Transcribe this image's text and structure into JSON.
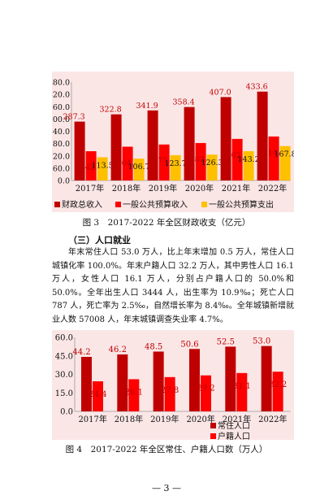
{
  "charts": [
    {
      "chart_data": {
        "type": "bar",
        "categories": [
          "2017年",
          "2018年",
          "2019年",
          "2020年",
          "2021年",
          "2022年"
        ],
        "series": [
          {
            "name": "财政总收入",
            "values": [
              287.3,
              322.8,
              341.9,
              358.4,
              407.0,
              433.6
            ],
            "color": "#c00000",
            "label_color": "#c00000",
            "labels": [
              "287.3",
              "322.8",
              "341.9",
              "358.4",
              "407.0",
              "433.6"
            ]
          },
          {
            "name": "一般公共预算收入",
            "values": [
              142.8,
              164.9,
              175.6,
              182.8,
              202.9,
              214.7
            ],
            "color": "#ff0000",
            "label_color": "#c00000",
            "labels": [
              "142.8",
              "164.9",
              "175.6",
              "182.8",
              "202.9",
              "214.7"
            ]
          },
          {
            "name": "一般公共预算支出",
            "values": [
              113.5,
              106.7,
              123.7,
              126.3,
              143.2,
              167.8
            ],
            "color": "#ffc000",
            "label_color": "#111111",
            "labels": [
              "113.5",
              "106.7",
              "123.7",
              "126.3",
              "143.2",
              "167.8"
            ]
          }
        ],
        "yticks": [
          "0.0",
          "60.0",
          "120.0",
          "180.0",
          "240.0",
          "300.0",
          "360.0",
          "420.0",
          "480.0"
        ],
        "ylim": [
          0,
          480
        ],
        "legend_position": "bottom",
        "grid": false
      },
      "caption": "图 3　2017-2022 年全区财政收支（亿元）"
    },
    {
      "chart_data": {
        "type": "bar",
        "categories": [
          "2017年",
          "2018年",
          "2019年",
          "2020年",
          "2021年",
          "2022年"
        ],
        "series": [
          {
            "name": "常住人口",
            "values": [
              44.2,
              46.2,
              48.5,
              50.6,
              52.5,
              53.0
            ],
            "color": "#c00000",
            "label_color": "#c00000",
            "labels": [
              "44.2",
              "46.2",
              "48.5",
              "50.6",
              "52.5",
              "53.0"
            ]
          },
          {
            "name": "户籍人口",
            "values": [
              24.4,
              26.1,
              27.8,
              29.2,
              31.1,
              32.2
            ],
            "color": "#ff0000",
            "label_color": "#c00000",
            "labels": [
              "24.4",
              "26.1",
              "27.8",
              "29.2",
              "31.1",
              "32.2"
            ]
          }
        ],
        "yticks": [
          "0.0",
          "15.0",
          "30.0",
          "45.0",
          "60.0"
        ],
        "ylim": [
          0,
          60
        ],
        "legend_position": "right",
        "grid": false
      },
      "caption": "图 4　2017-2022 年全区常住、户籍人口数（万人）"
    }
  ],
  "section_heading": "（三）人口就业",
  "paragraph": "年末常住人口 53.0 万人，比上年末增加 0.5 万人，常住人口城镇化率 100.0%。年末户籍人口 32.2 万人，其中男性人口 16.1 万人，女性人口 16.1 万人，分别占户籍人口的 50.0%和 50.0%。全年出生人口 3444 人，出生率为 10.9‰；死亡人口 787 人，死亡率为 2.5‰，自然增长率为 8.4‰。全年城镇新增就业人数 57008 人，年末城镇调查失业率 4.7%。",
  "page_number": "— 3 —"
}
